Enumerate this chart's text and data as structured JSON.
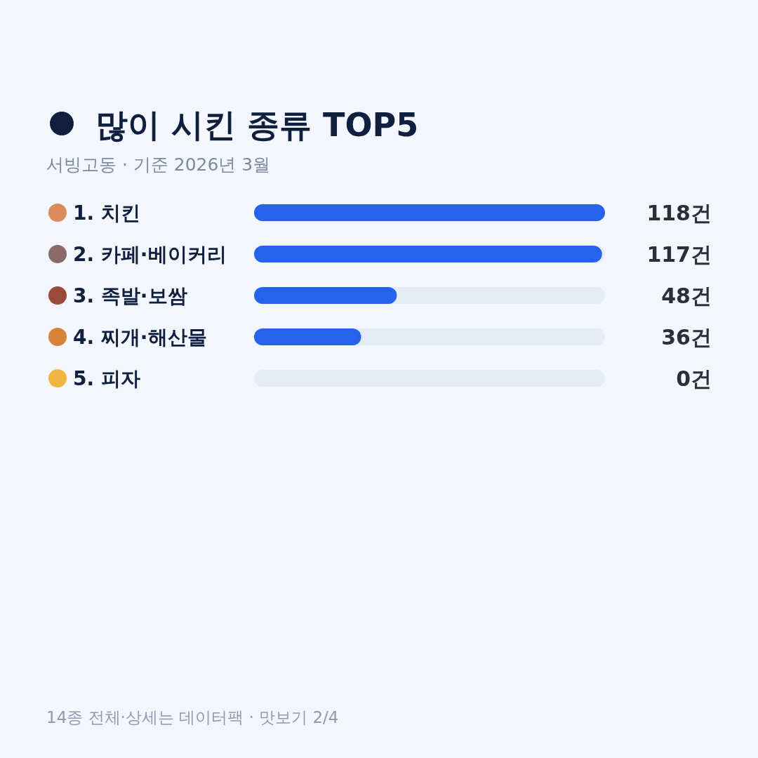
{
  "chart_data": {
    "type": "bar",
    "orientation": "horizontal",
    "title": "많이 시킨 종류 TOP5",
    "subtitle": "서빙고동 · 기준 2026년 3월",
    "categories": [
      "1. 치킨",
      "2. 카페·베이커리",
      "3. 족발·보쌈",
      "4. 찌개·해산물",
      "5. 피자"
    ],
    "values": [
      118,
      117,
      48,
      36,
      0
    ],
    "value_labels": [
      "118건",
      "117건",
      "48건",
      "36건",
      "0건"
    ],
    "color": "#2563eb",
    "xlim": [
      0,
      118
    ],
    "grid": "y",
    "annotations": [
      "14종 전체·상세는 데이터팩 · 맛보기 2/4"
    ]
  }
}
